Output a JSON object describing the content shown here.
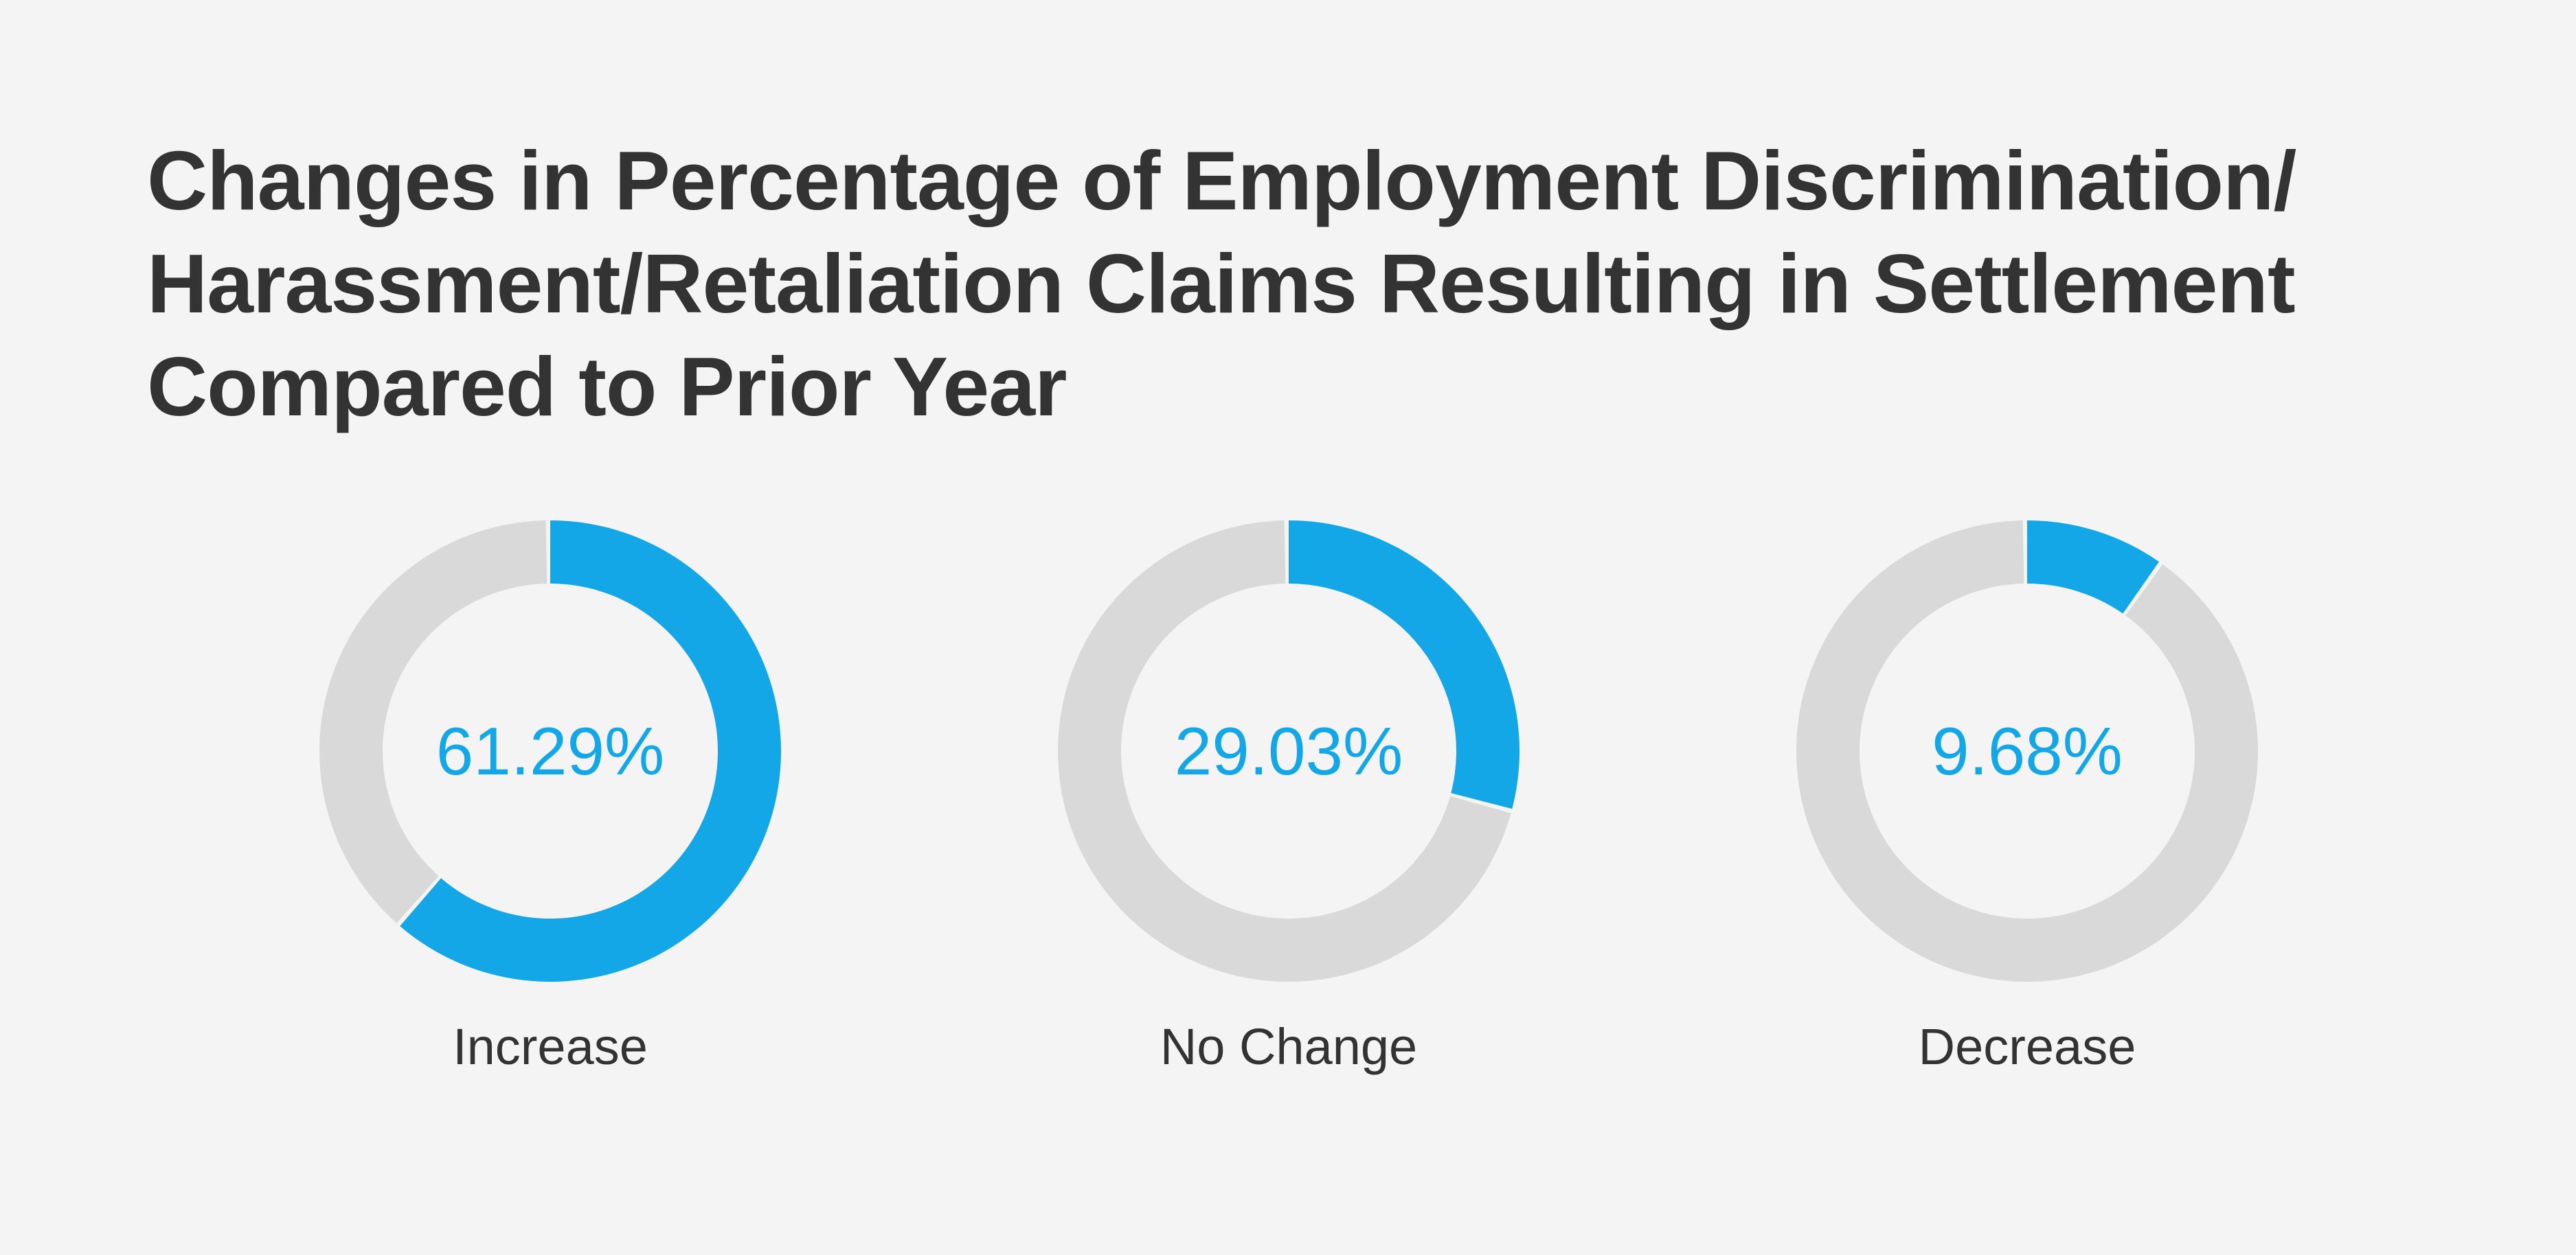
{
  "title_lines": [
    "Changes in Percentage of Employment Discrimination/",
    "Harassment/Retaliation Claims Resulting in Settlement",
    "Compared to Prior Year"
  ],
  "colors": {
    "highlight": "#14a7e8",
    "remainder": "#d9d9d9",
    "background": "#f4f4f4",
    "text": "#333333"
  },
  "chart_data": {
    "type": "pie",
    "style": "donut",
    "title": "Changes in Percentage of Employment Discrimination/ Harassment/Retaliation Claims Resulting in Settlement Compared to Prior Year",
    "categories": [
      "Increase",
      "No Change",
      "Decrease"
    ],
    "values": [
      61.29,
      29.03,
      9.68
    ],
    "value_labels": [
      "61.29%",
      "29.03%",
      "9.68%"
    ],
    "unit": "%"
  }
}
